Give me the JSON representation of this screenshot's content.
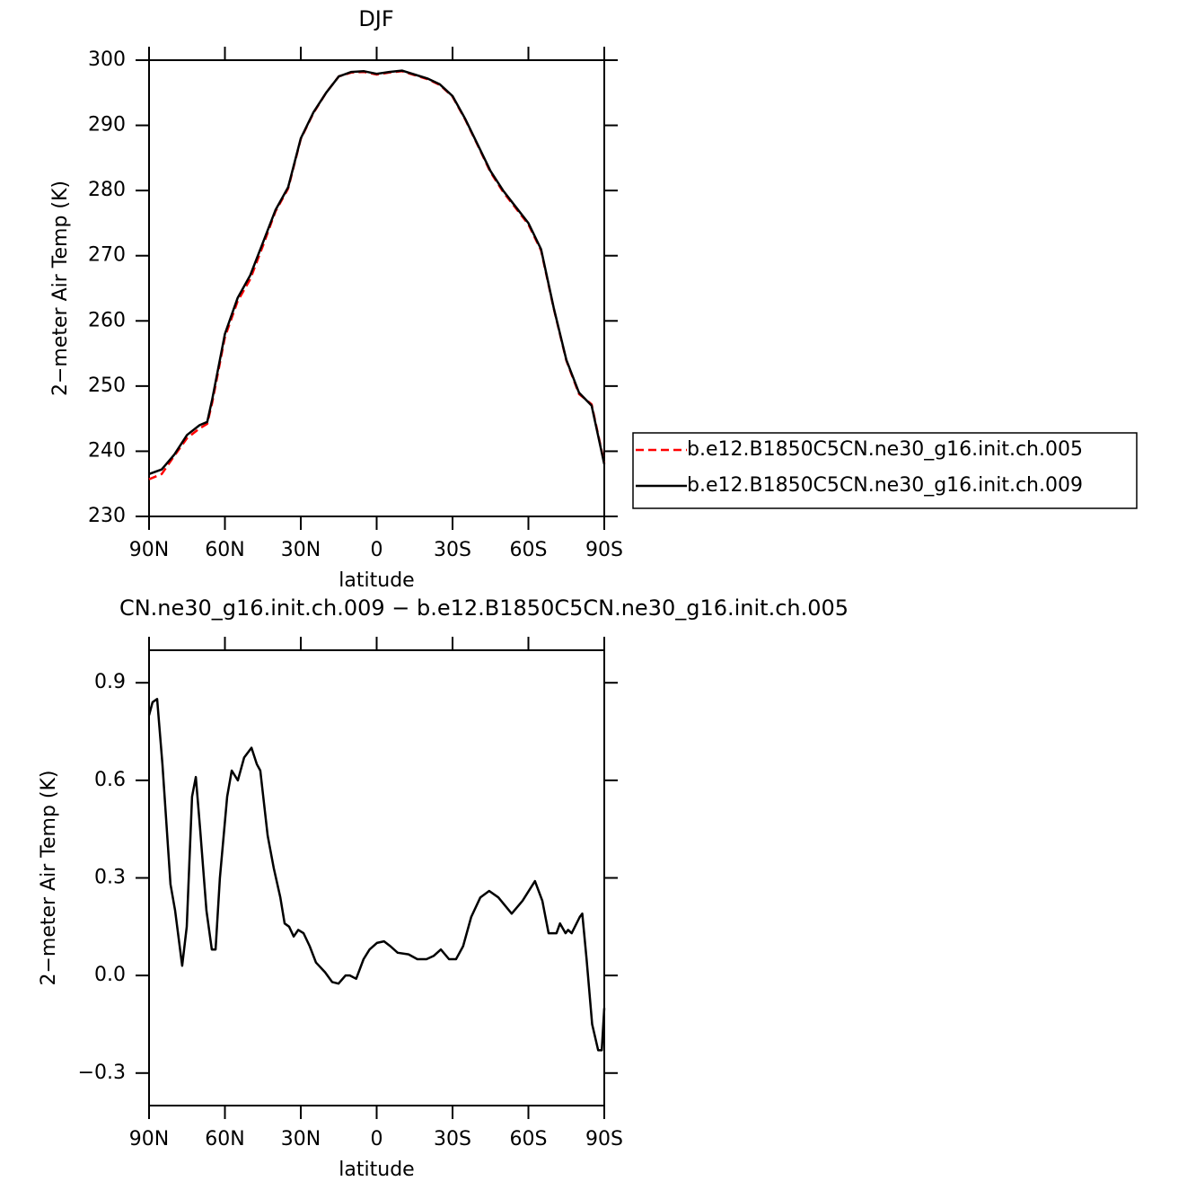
{
  "chart_data": [
    {
      "type": "line",
      "title": "DJF",
      "xlabel": "latitude",
      "ylabel": "2−meter Air Temp (K)",
      "x": [
        90,
        85,
        80,
        75,
        70,
        67,
        65,
        60,
        55,
        50,
        45,
        40,
        35,
        30,
        25,
        20,
        15,
        10,
        5,
        0,
        -5,
        -10,
        -15,
        -20,
        -25,
        -30,
        -35,
        -40,
        -45,
        -50,
        -55,
        -60,
        -65,
        -70,
        -75,
        -80,
        -85,
        -90
      ],
      "series": [
        {
          "name": "b.e12.B1850C5CN.ne30_g16.init.ch.005",
          "color": "#ff0000",
          "linestyle": "dashed",
          "values": [
            235.7,
            236.5,
            239.3,
            242,
            243.5,
            244.2,
            247.5,
            257.5,
            263,
            266.4,
            271.5,
            276.8,
            280.3,
            287.9,
            291.9,
            295,
            297.5,
            298.1,
            298.2,
            297.8,
            298.1,
            298.3,
            297.7,
            297.1,
            296.2,
            294.4,
            290.9,
            286.9,
            282.8,
            279.8,
            277.3,
            274.8,
            270.8,
            261.9,
            253.9,
            248.8,
            247.2,
            238.2
          ]
        },
        {
          "name": "b.e12.B1850C5CN.ne30_g16.init.ch.009",
          "color": "#000000",
          "linestyle": "solid",
          "values": [
            236.5,
            237.2,
            239.5,
            242.5,
            244,
            244.5,
            248,
            258,
            263.5,
            267,
            272,
            277,
            280.5,
            288,
            292,
            295,
            297.5,
            298.2,
            298.3,
            297.9,
            298.2,
            298.4,
            297.8,
            297.2,
            296.3,
            294.5,
            291,
            287,
            283,
            280,
            277.5,
            275,
            271,
            262,
            254,
            249,
            247,
            238
          ]
        }
      ],
      "xlim": [
        90,
        -90
      ],
      "xticks": [
        {
          "value": 90,
          "label": "90N"
        },
        {
          "value": 60,
          "label": "60N"
        },
        {
          "value": 30,
          "label": "30N"
        },
        0,
        {
          "value": -30,
          "label": "30S"
        },
        {
          "value": -60,
          "label": "60S"
        },
        {
          "value": -90,
          "label": "90S"
        }
      ],
      "ylim": [
        230,
        300
      ],
      "yticks": [
        230,
        240,
        250,
        260,
        270,
        280,
        290,
        300
      ]
    },
    {
      "type": "line",
      "title": "CN.ne30_g16.init.ch.009  −  b.e12.B1850C5CN.ne30_g16.init.ch.005",
      "xlabel": "latitude",
      "ylabel": "2−meter Air Temp (K)",
      "x": [
        90,
        88.6,
        86.8,
        84.7,
        81.5,
        79.7,
        76.9,
        75.1,
        73,
        71.5,
        69.8,
        67.3,
        65.2,
        63.7,
        62,
        59.1,
        57.3,
        54.9,
        52.4,
        49.5,
        47.4,
        46,
        43.1,
        40.7,
        38.1,
        36.4,
        34.6,
        32.8,
        31,
        28.9,
        26.5,
        24,
        20.4,
        17.6,
        15.1,
        12.3,
        10.6,
        8.1,
        5.2,
        2.8,
        -0.1,
        -2.9,
        -5.4,
        -8.3,
        -12.6,
        -16.1,
        -19.7,
        -22.5,
        -25.4,
        -28.6,
        -31.4,
        -34.2,
        -37.4,
        -41,
        -44.5,
        -48.1,
        -53.4,
        -57.7,
        -62.6,
        -65.5,
        -68,
        -71.1,
        -72.5,
        -74.7,
        -75.7,
        -77.1,
        -80.3,
        -81.3,
        -83,
        -85.2,
        -87.6,
        -89,
        -90
      ],
      "values": [
        0.8,
        0.84,
        0.85,
        0.65,
        0.28,
        0.2,
        0.03,
        0.15,
        0.55,
        0.61,
        0.45,
        0.2,
        0.08,
        0.08,
        0.3,
        0.55,
        0.63,
        0.6,
        0.67,
        0.7,
        0.65,
        0.63,
        0.43,
        0.33,
        0.24,
        0.16,
        0.15,
        0.12,
        0.14,
        0.13,
        0.09,
        0.04,
        0.01,
        -0.02,
        -0.025,
        0.0,
        0.0,
        -0.01,
        0.05,
        0.08,
        0.1,
        0.105,
        0.09,
        0.07,
        0.065,
        0.05,
        0.05,
        0.06,
        0.08,
        0.05,
        0.05,
        0.09,
        0.18,
        0.24,
        0.26,
        0.24,
        0.19,
        0.23,
        0.29,
        0.23,
        0.13,
        0.13,
        0.16,
        0.13,
        0.14,
        0.13,
        0.18,
        0.19,
        0.05,
        -0.15,
        -0.23,
        -0.23,
        -0.1
      ],
      "color": "#000000",
      "xlim": [
        90,
        -90
      ],
      "xticks": [
        {
          "value": 90,
          "label": "90N"
        },
        {
          "value": 60,
          "label": "60N"
        },
        {
          "value": 30,
          "label": "30N"
        },
        0,
        {
          "value": -30,
          "label": "30S"
        },
        {
          "value": -60,
          "label": "60S"
        },
        {
          "value": -90,
          "label": "90S"
        }
      ],
      "ylim": [
        -0.4,
        1.0
      ],
      "yticks": [
        {
          "value": -0.3,
          "label": "−0.3"
        },
        {
          "value": 0,
          "label": "0.0"
        },
        0.3,
        0.6,
        0.9
      ]
    }
  ]
}
